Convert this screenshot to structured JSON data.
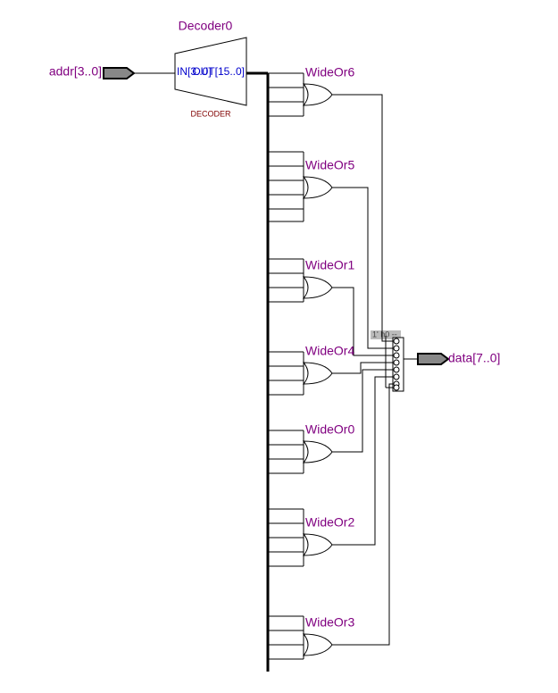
{
  "decoder": {
    "name": "Decoder0",
    "kind": "DECODER",
    "input": "IN[3..0]",
    "output": "OUT[15..0]"
  },
  "input_pin": "addr[3..0]",
  "output_pin": "data[7..0]",
  "constant": "1' h0 --",
  "gates": [
    "WideOr6",
    "WideOr5",
    "WideOr1",
    "WideOr4",
    "WideOr0",
    "WideOr2",
    "WideOr3"
  ]
}
